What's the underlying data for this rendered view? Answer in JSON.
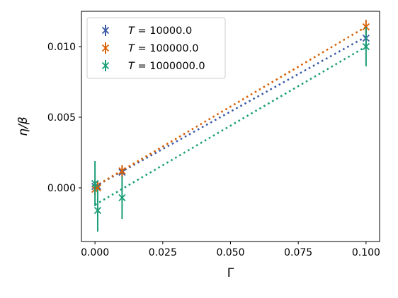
{
  "chart_data": {
    "type": "scatter",
    "xlabel": "Γ",
    "ylabel": "η/β",
    "xlim": [
      -0.005,
      0.105
    ],
    "ylim": [
      -0.0038,
      0.0125
    ],
    "xticks": [
      0.0,
      0.025,
      0.05,
      0.075,
      0.1
    ],
    "xtick_labels": [
      "0.000",
      "0.025",
      "0.050",
      "0.075",
      "0.100"
    ],
    "yticks": [
      0.0,
      0.005,
      0.01
    ],
    "ytick_labels": [
      "0.000",
      "0.005",
      "0.010"
    ],
    "grid": false,
    "legend_position": "top-left",
    "series": [
      {
        "name": "T = 10000.0",
        "legend_var": "T",
        "legend_value": "10000.0",
        "color": "#3b5ba5",
        "points": [
          {
            "x": 0.0,
            "y": 0.0001,
            "yerr": 0.0004
          },
          {
            "x": 0.001,
            "y": 0.0001,
            "yerr": 0.0004
          },
          {
            "x": 0.01,
            "y": 0.0011,
            "yerr": 0.0004
          },
          {
            "x": 0.1,
            "y": 0.0106,
            "yerr": 0.0006
          }
        ],
        "fit": {
          "x": [
            0.0,
            0.1
          ],
          "y": [
            0.0001,
            0.0107
          ]
        }
      },
      {
        "name": "T = 100000.0",
        "legend_var": "T",
        "legend_value": "100000.0",
        "color": "#d95f02",
        "points": [
          {
            "x": 0.0,
            "y": -0.0001,
            "yerr": 0.0004
          },
          {
            "x": 0.001,
            "y": 0.0,
            "yerr": 0.0004
          },
          {
            "x": 0.01,
            "y": 0.0012,
            "yerr": 0.0004
          },
          {
            "x": 0.1,
            "y": 0.0114,
            "yerr": 0.0005
          }
        ],
        "fit": {
          "x": [
            0.0,
            0.1
          ],
          "y": [
            0.0001,
            0.0114
          ]
        }
      },
      {
        "name": "T = 1000000.0",
        "legend_var": "T",
        "legend_value": "1000000.0",
        "color": "#1b9e77",
        "points": [
          {
            "x": 0.0,
            "y": 0.0003,
            "yerr": 0.0016
          },
          {
            "x": 0.001,
            "y": -0.0016,
            "yerr": 0.0015
          },
          {
            "x": 0.01,
            "y": -0.0007,
            "yerr": 0.0015
          },
          {
            "x": 0.1,
            "y": 0.01,
            "yerr": 0.0014
          }
        ],
        "fit": {
          "x": [
            0.0,
            0.1
          ],
          "y": [
            -0.0012,
            0.01
          ]
        }
      }
    ]
  }
}
